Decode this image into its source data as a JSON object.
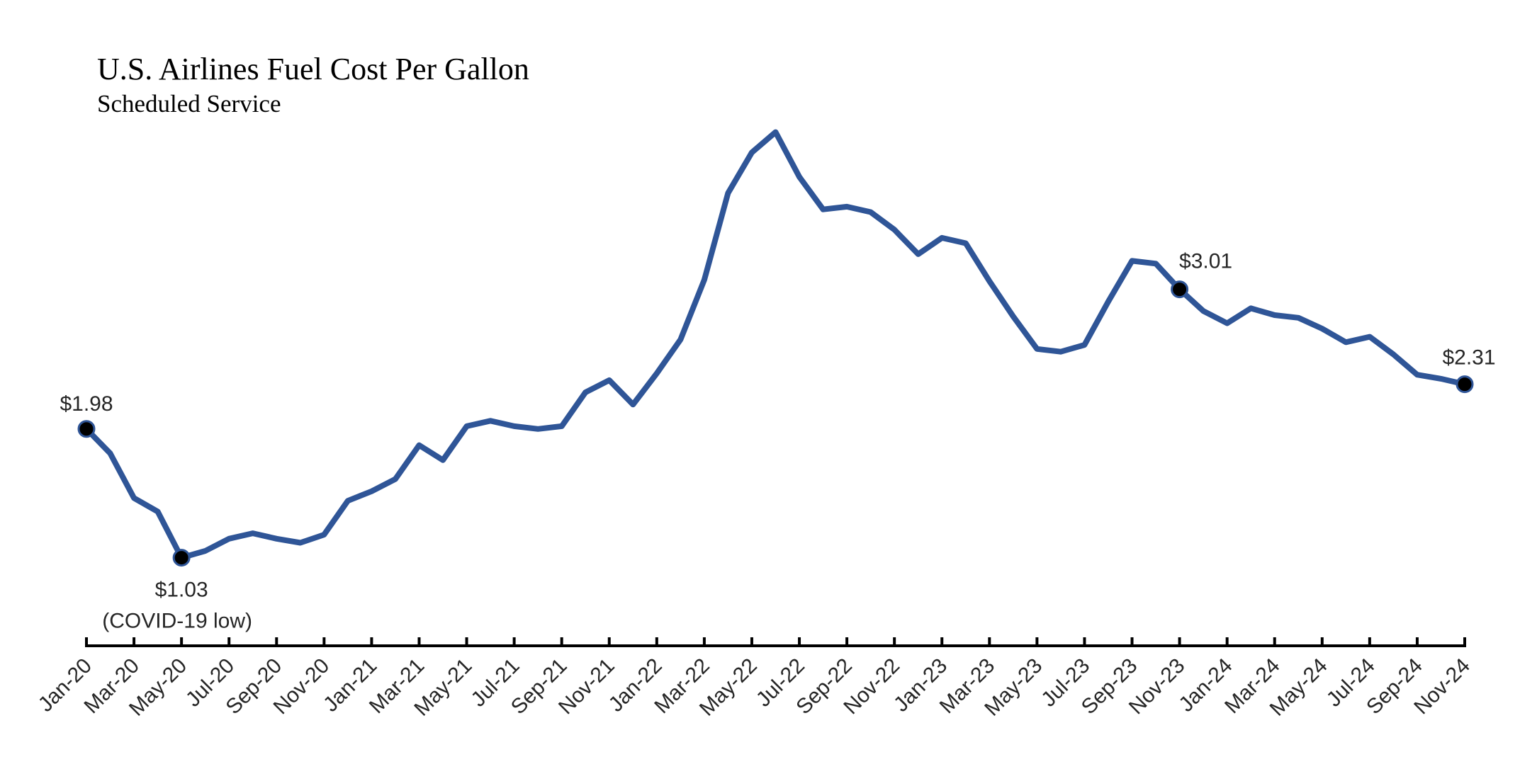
{
  "chart_data": {
    "type": "line",
    "title": "U.S. Airlines Fuel Cost Per Gallon",
    "subtitle": "Scheduled Service",
    "xlabel": "",
    "ylabel": "",
    "grid": false,
    "legend": "none",
    "x_tick_labels": [
      "Jan-20",
      "Mar-20",
      "May-20",
      "Jul-20",
      "Sep-20",
      "Nov-20",
      "Jan-21",
      "Mar-21",
      "May-21",
      "Jul-21",
      "Sep-21",
      "Nov-21",
      "Jan-22",
      "Mar-22",
      "May-22",
      "Jul-22",
      "Sep-22",
      "Nov-22",
      "Jan-23",
      "Mar-23",
      "May-23",
      "Jul-23",
      "Sep-23",
      "Nov-23",
      "Jan-24",
      "Mar-24",
      "May-24",
      "Jul-24",
      "Sep-24",
      "Nov-24"
    ],
    "ylim": [
      0.38,
      4.1
    ],
    "series": [
      {
        "color": "#2f5597",
        "x": [
          "Jan-20",
          "Feb-20",
          "Mar-20",
          "Apr-20",
          "May-20",
          "Jun-20",
          "Jul-20",
          "Aug-20",
          "Sep-20",
          "Oct-20",
          "Nov-20",
          "Dec-20",
          "Jan-21",
          "Feb-21",
          "Mar-21",
          "Apr-21",
          "May-21",
          "Jun-21",
          "Jul-21",
          "Aug-21",
          "Sep-21",
          "Oct-21",
          "Nov-21",
          "Dec-21",
          "Jan-22",
          "Feb-22",
          "Mar-22",
          "Apr-22",
          "May-22",
          "Jun-22",
          "Jul-22",
          "Aug-22",
          "Sep-22",
          "Oct-22",
          "Nov-22",
          "Dec-22",
          "Jan-23",
          "Feb-23",
          "Mar-23",
          "Apr-23",
          "May-23",
          "Jun-23",
          "Jul-23",
          "Aug-23",
          "Sep-23",
          "Oct-23",
          "Nov-23",
          "Dec-23",
          "Jan-24",
          "Feb-24",
          "Mar-24",
          "Apr-24",
          "May-24",
          "Jun-24",
          "Jul-24",
          "Aug-24",
          "Sep-24",
          "Oct-24",
          "Nov-24"
        ],
        "values": [
          1.98,
          1.8,
          1.47,
          1.37,
          1.03,
          1.08,
          1.17,
          1.21,
          1.17,
          1.14,
          1.2,
          1.45,
          1.52,
          1.61,
          1.86,
          1.75,
          2.0,
          2.04,
          2.0,
          1.98,
          2.0,
          2.25,
          2.34,
          2.16,
          2.39,
          2.64,
          3.08,
          3.72,
          4.02,
          4.17,
          3.84,
          3.6,
          3.62,
          3.58,
          3.45,
          3.27,
          3.39,
          3.35,
          3.07,
          2.81,
          2.57,
          2.55,
          2.6,
          2.92,
          3.22,
          3.2,
          3.01,
          2.85,
          2.76,
          2.87,
          2.82,
          2.8,
          2.72,
          2.62,
          2.66,
          2.53,
          2.38,
          2.35,
          2.31
        ]
      }
    ],
    "annotations": [
      {
        "x": "Jan-20",
        "value": 1.98,
        "label": "$1.98"
      },
      {
        "x": "May-20",
        "value": 1.03,
        "label": "$1.03",
        "note": "(COVID-19 low)"
      },
      {
        "x": "Nov-23",
        "value": 3.01,
        "label": "$3.01"
      },
      {
        "x": "Nov-24",
        "value": 2.31,
        "label": "$2.31"
      }
    ]
  }
}
